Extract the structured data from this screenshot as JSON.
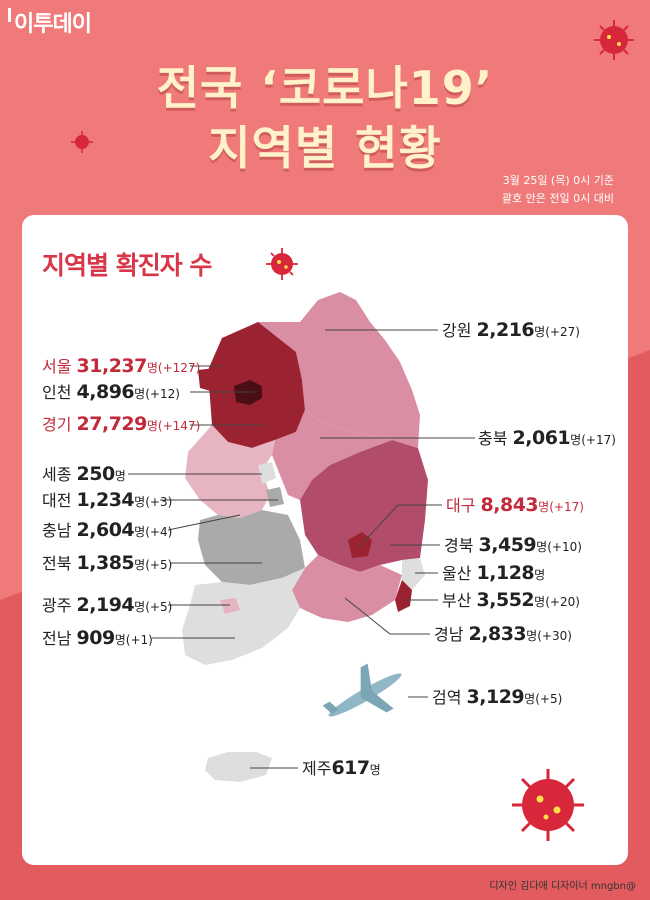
{
  "brand": "이투데이",
  "title": {
    "line1": "전국 ‘코로나19’",
    "line2": "지역별 현황"
  },
  "notes": {
    "line1": "3월 25일 (목) 0시 기준",
    "line2": "괄호 안은 전일 0시 대비"
  },
  "subtitle": "지역별 확진자 수",
  "colors": {
    "background": "#f07a7a",
    "card": "#ffffff",
    "title": "#fff1c8",
    "accent": "#d8374a",
    "high": "#9b2231",
    "upper": "#b14d6a",
    "mid": "#d98ea3",
    "low": "#e7b5c1",
    "gray_dark": "#aaaaaa",
    "gray_light": "#dedede"
  },
  "regions": [
    {
      "id": "seoul",
      "name": "서울",
      "count": "31,237",
      "unit": "명",
      "diff": "(+127)",
      "highlight": true
    },
    {
      "id": "incheon",
      "name": "인천",
      "count": "4,896",
      "unit": "명",
      "diff": "(+12)",
      "highlight": false
    },
    {
      "id": "gyeonggi",
      "name": "경기",
      "count": "27,729",
      "unit": "명",
      "diff": "(+147)",
      "highlight": true
    },
    {
      "id": "sejong",
      "name": "세종",
      "count": "250",
      "unit": "명",
      "diff": "",
      "highlight": false
    },
    {
      "id": "daejeon",
      "name": "대전",
      "count": "1,234",
      "unit": "명",
      "diff": "(+3)",
      "highlight": false
    },
    {
      "id": "chungnam",
      "name": "충남",
      "count": "2,604",
      "unit": "명",
      "diff": "(+4)",
      "highlight": false
    },
    {
      "id": "jeonbuk",
      "name": "전북",
      "count": "1,385",
      "unit": "명",
      "diff": "(+5)",
      "highlight": false
    },
    {
      "id": "gwangju",
      "name": "광주",
      "count": "2,194",
      "unit": "명",
      "diff": "(+5)",
      "highlight": false
    },
    {
      "id": "jeonnam",
      "name": "전남",
      "count": "909",
      "unit": "명",
      "diff": "(+1)",
      "highlight": false
    },
    {
      "id": "gangwon",
      "name": "강원",
      "count": "2,216",
      "unit": "명",
      "diff": "(+27)",
      "highlight": false
    },
    {
      "id": "chungbuk",
      "name": "충북",
      "count": "2,061",
      "unit": "명",
      "diff": "(+17)",
      "highlight": false
    },
    {
      "id": "daegu",
      "name": "대구",
      "count": "8,843",
      "unit": "명",
      "diff": "(+17)",
      "highlight": true
    },
    {
      "id": "gyeongbuk",
      "name": "경북",
      "count": "3,459",
      "unit": "명",
      "diff": "(+10)",
      "highlight": false
    },
    {
      "id": "ulsan",
      "name": "울산",
      "count": "1,128",
      "unit": "명",
      "diff": "",
      "highlight": false
    },
    {
      "id": "busan",
      "name": "부산",
      "count": "3,552",
      "unit": "명",
      "diff": "(+20)",
      "highlight": false
    },
    {
      "id": "gyeongnam",
      "name": "경남",
      "count": "2,833",
      "unit": "명",
      "diff": "(+30)",
      "highlight": false
    },
    {
      "id": "quarantine",
      "name": "검역",
      "count": "3,129",
      "unit": "명",
      "diff": "(+5)",
      "highlight": false
    },
    {
      "id": "jeju",
      "name": "제주",
      "count": "617",
      "unit": "명",
      "diff": "",
      "highlight": false
    }
  ],
  "credit": "디자인 김다애 디자이너 mngbn@",
  "icons": [
    "virus-icon",
    "airplane-icon"
  ]
}
